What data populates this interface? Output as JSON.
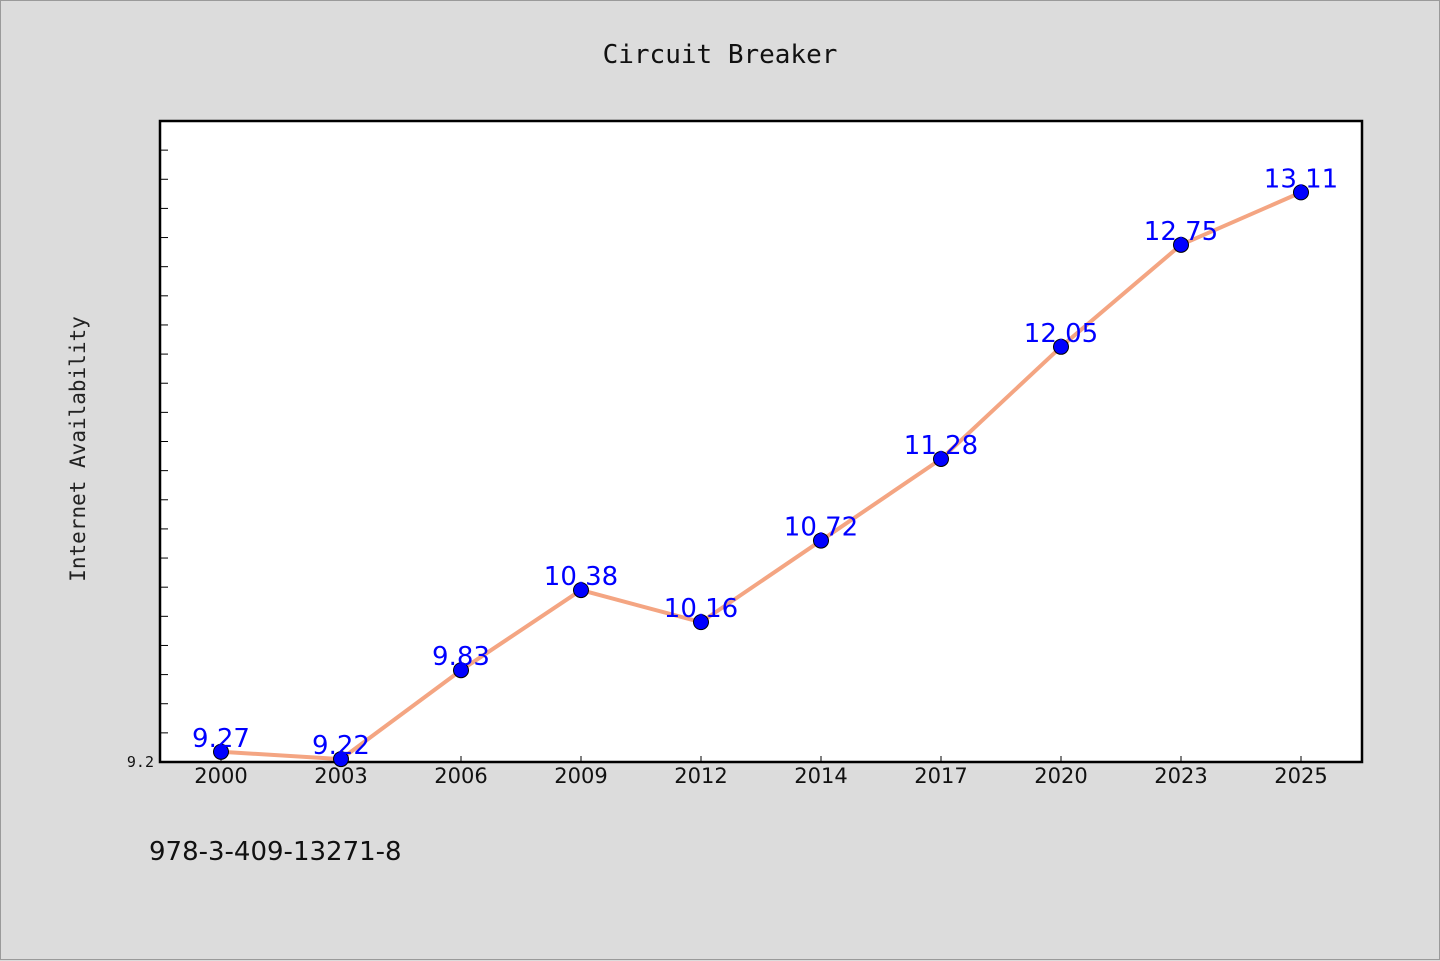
{
  "chart_data": {
    "type": "line",
    "title": "Circuit Breaker",
    "xlabel": "",
    "ylabel": "Internet Availability",
    "categories": [
      "2000",
      "2003",
      "2006",
      "2009",
      "2012",
      "2014",
      "2017",
      "2020",
      "2023",
      "2025"
    ],
    "series": [
      {
        "values": [
          9.27,
          9.22,
          9.83,
          10.38,
          10.16,
          10.72,
          11.28,
          12.05,
          12.75,
          13.11
        ]
      }
    ],
    "data_labels": [
      "9.27",
      "9.22",
      "9.83",
      "10.38",
      "10.16",
      "10.72",
      "11.28",
      "12.05",
      "12.75",
      "13.11"
    ],
    "yticks_labeled": [
      "9.2"
    ],
    "ylim": [
      9.2,
      13.6
    ],
    "ytick_step": 0.2,
    "grid": false,
    "colors": {
      "line": "#f4a582",
      "marker_fill": "#0000ff",
      "data_label": "#0000ff",
      "plot_background": "#ffffff",
      "figure_background": "#dcdcdc"
    }
  },
  "footer_text": "978-3-409-13271-8"
}
